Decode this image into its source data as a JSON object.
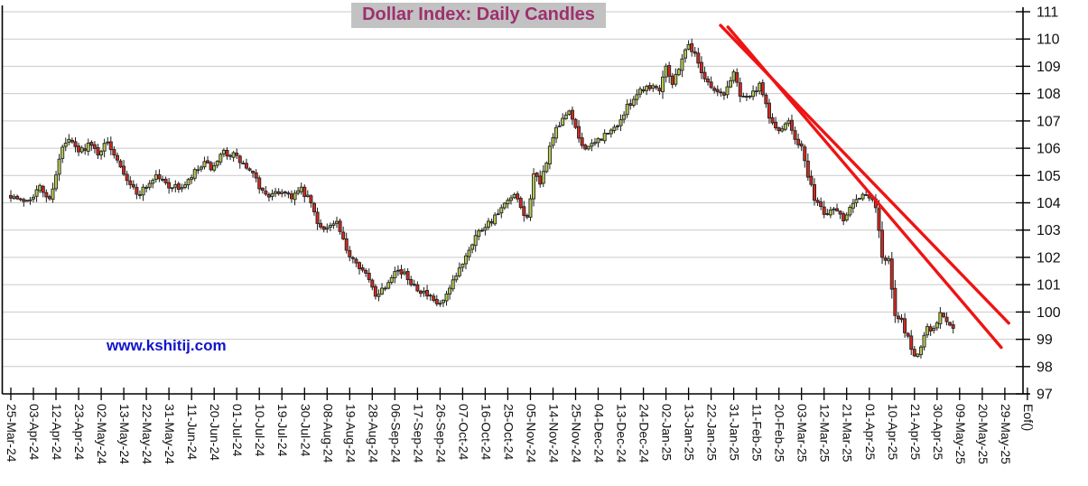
{
  "title": "Dollar Index: Daily Candles",
  "watermark": "www.kshitij.com",
  "chart_data": {
    "type": "candlestick",
    "title": "Dollar Index: Daily Candles",
    "instrument": "Dollar Index",
    "interval": "Daily",
    "ylim": [
      97,
      111
    ],
    "y_ticks": [
      111,
      110,
      109,
      108,
      107,
      106,
      105,
      104,
      103,
      102,
      101,
      100,
      99,
      98,
      97
    ],
    "x_tick_labels": [
      "25-Mar-24",
      "03-Apr-24",
      "12-Apr-24",
      "23-Apr-24",
      "02-May-24",
      "13-May-24",
      "22-May-24",
      "31-May-24",
      "11-Jun-24",
      "20-Jun-24",
      "01-Jul-24",
      "10-Jul-24",
      "19-Jul-24",
      "30-Jul-24",
      "08-Aug-24",
      "19-Aug-24",
      "28-Aug-24",
      "06-Sep-24",
      "17-Sep-24",
      "26-Sep-24",
      "07-Oct-24",
      "16-Oct-24",
      "25-Oct-24",
      "05-Nov-24",
      "14-Nov-24",
      "25-Nov-24",
      "04-Dec-24",
      "13-Dec-24",
      "24-Dec-24",
      "02-Jan-25",
      "13-Jan-25",
      "22-Jan-25",
      "31-Jan-25",
      "11-Feb-25",
      "20-Feb-25",
      "03-Mar-25",
      "12-Mar-25",
      "21-Mar-25",
      "01-Apr-25",
      "10-Apr-25",
      "21-Apr-25",
      "30-Apr-25",
      "09-May-25",
      "20-May-25",
      "29-May-25"
    ],
    "end_label": "Eof()",
    "candles_per_tick": 7,
    "num_candles": 293,
    "grid": true,
    "price_path_anchors": [
      [
        0,
        104.3
      ],
      [
        3,
        104.05
      ],
      [
        6,
        104.2
      ],
      [
        9,
        104.55
      ],
      [
        12,
        104.1
      ],
      [
        14,
        105.1
      ],
      [
        16,
        106.0
      ],
      [
        18,
        106.3
      ],
      [
        21,
        105.85
      ],
      [
        24,
        106.15
      ],
      [
        27,
        105.85
      ],
      [
        30,
        106.2
      ],
      [
        33,
        105.65
      ],
      [
        36,
        104.9
      ],
      [
        39,
        104.3
      ],
      [
        42,
        104.6
      ],
      [
        45,
        105.0
      ],
      [
        48,
        104.7
      ],
      [
        51,
        104.55
      ],
      [
        54,
        104.6
      ],
      [
        57,
        105.1
      ],
      [
        60,
        105.4
      ],
      [
        63,
        105.25
      ],
      [
        66,
        105.85
      ],
      [
        69,
        105.75
      ],
      [
        72,
        105.4
      ],
      [
        75,
        105.0
      ],
      [
        78,
        104.4
      ],
      [
        81,
        104.25
      ],
      [
        84,
        104.45
      ],
      [
        87,
        104.25
      ],
      [
        90,
        104.45
      ],
      [
        93,
        104.0
      ],
      [
        95,
        103.2
      ],
      [
        98,
        103.1
      ],
      [
        101,
        103.25
      ],
      [
        104,
        102.2
      ],
      [
        107,
        101.9
      ],
      [
        110,
        101.35
      ],
      [
        113,
        100.65
      ],
      [
        116,
        100.95
      ],
      [
        119,
        101.6
      ],
      [
        122,
        101.35
      ],
      [
        125,
        101.0
      ],
      [
        128,
        100.7
      ],
      [
        131,
        100.35
      ],
      [
        133,
        100.25
      ],
      [
        135,
        100.55
      ],
      [
        138,
        101.3
      ],
      [
        141,
        102.1
      ],
      [
        144,
        102.8
      ],
      [
        147,
        103.2
      ],
      [
        150,
        103.45
      ],
      [
        153,
        103.9
      ],
      [
        156,
        104.25
      ],
      [
        158,
        103.8
      ],
      [
        160,
        103.4
      ],
      [
        162,
        105.1
      ],
      [
        164,
        104.6
      ],
      [
        166,
        105.55
      ],
      [
        168,
        106.45
      ],
      [
        171,
        107.0
      ],
      [
        173,
        107.45
      ],
      [
        175,
        106.65
      ],
      [
        177,
        106.1
      ],
      [
        180,
        106.05
      ],
      [
        183,
        106.4
      ],
      [
        186,
        106.6
      ],
      [
        189,
        107.05
      ],
      [
        192,
        107.7
      ],
      [
        195,
        108.15
      ],
      [
        198,
        108.3
      ],
      [
        201,
        108.2
      ],
      [
        203,
        109.1
      ],
      [
        205,
        108.35
      ],
      [
        208,
        109.3
      ],
      [
        210,
        109.85
      ],
      [
        212,
        109.4
      ],
      [
        215,
        108.6
      ],
      [
        218,
        108.1
      ],
      [
        221,
        107.95
      ],
      [
        224,
        108.8
      ],
      [
        226,
        108.0
      ],
      [
        229,
        107.9
      ],
      [
        232,
        108.25
      ],
      [
        234,
        107.55
      ],
      [
        236,
        106.85
      ],
      [
        239,
        106.6
      ],
      [
        241,
        107.05
      ],
      [
        243,
        106.4
      ],
      [
        245,
        106.05
      ],
      [
        247,
        104.9
      ],
      [
        249,
        104.2
      ],
      [
        252,
        103.6
      ],
      [
        255,
        103.85
      ],
      [
        258,
        103.45
      ],
      [
        261,
        104.1
      ],
      [
        264,
        104.3
      ],
      [
        266,
        104.15
      ],
      [
        268,
        103.9
      ],
      [
        270,
        102.05
      ],
      [
        272,
        101.85
      ],
      [
        274,
        99.85
      ],
      [
        276,
        99.6
      ],
      [
        278,
        99.05
      ],
      [
        280,
        98.35
      ],
      [
        282,
        98.7
      ],
      [
        284,
        99.55
      ],
      [
        286,
        99.3
      ],
      [
        288,
        99.95
      ],
      [
        290,
        99.65
      ],
      [
        292,
        99.5
      ]
    ],
    "notable_levels": {
      "high": 110.25,
      "high_date": "13-Jan-25",
      "low": 97.95,
      "low_date": "21-Apr-25"
    },
    "trendlines": [
      {
        "from": {
          "index": 219.9,
          "price": 110.5
        },
        "to": {
          "index": 309.2,
          "price": 99.59
        }
      },
      {
        "from": {
          "index": 222.2,
          "price": 110.44
        },
        "to": {
          "index": 306.9,
          "price": 98.7
        }
      }
    ],
    "colors": {
      "up_candle": "#b4cb52",
      "down_candle": "#d5281e",
      "candle_outline": "#242424",
      "wick": "#1a1a1a",
      "grid": "#c9c9c9",
      "axis": "#000000",
      "trendline": "#ee1414",
      "title_text": "#9e2f6e",
      "title_bg": "#c2c2c2",
      "watermark": "#1114cc",
      "tick_label": "#111111"
    },
    "seed": 7
  }
}
